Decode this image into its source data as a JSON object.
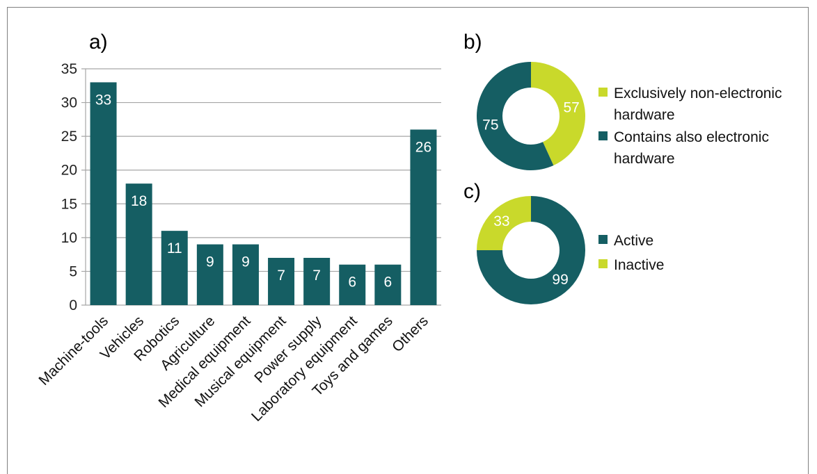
{
  "colors": {
    "dark": "#155e63",
    "light": "#c9d92b",
    "grid": "#a6a6a6"
  },
  "chart_data": [
    {
      "type": "bar",
      "panel_label": "a)",
      "categories": [
        "Machine-tools",
        "Vehicles",
        "Robotics",
        "Agriculture",
        "Medical equipment",
        "Musical equipment",
        "Power supply",
        "Laboratory equipment",
        "Toys and games",
        "Others"
      ],
      "values": [
        33,
        18,
        11,
        9,
        9,
        7,
        7,
        6,
        6,
        26
      ],
      "ylim": [
        0,
        35
      ],
      "yticks": [
        0,
        5,
        10,
        15,
        20,
        25,
        30,
        35
      ],
      "grid": true,
      "title": "",
      "xlabel": "",
      "ylabel": ""
    },
    {
      "type": "pie",
      "subtype": "donut",
      "panel_label": "b)",
      "slices": [
        {
          "label": "Exclusively non-electronic hardware",
          "value": 57,
          "color": "light"
        },
        {
          "label": "Contains also electronic hardware",
          "value": 75,
          "color": "dark"
        }
      ],
      "legend_placement": "right"
    },
    {
      "type": "pie",
      "subtype": "donut",
      "panel_label": "c)",
      "slices": [
        {
          "label": "Active",
          "value": 99,
          "color": "dark"
        },
        {
          "label": "Inactive",
          "value": 33,
          "color": "light"
        }
      ],
      "legend_placement": "right"
    }
  ]
}
